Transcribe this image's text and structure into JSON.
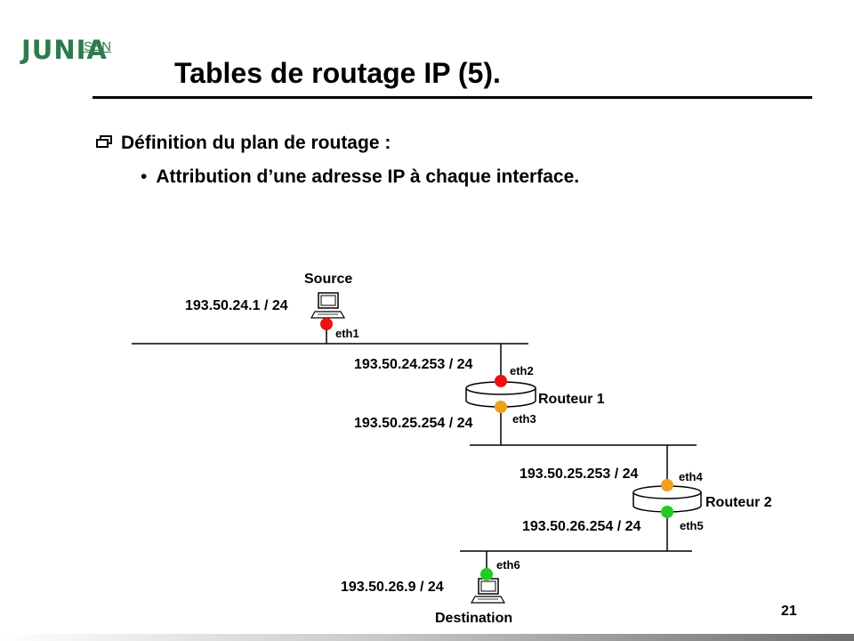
{
  "logo": {
    "main": "JUNIA",
    "sub": "ISEN"
  },
  "slide": {
    "title": "Tables de routage IP (5).",
    "bullet1": "Définition du plan de routage :",
    "bullet2": "Attribution d’une adresse IP à chaque interface.",
    "page_number": "21"
  },
  "diagram": {
    "hosts": {
      "source": "Source",
      "destination": "Destination"
    },
    "routers": {
      "r1": "Routeur 1",
      "r2": "Routeur 2"
    },
    "interfaces": {
      "eth1": {
        "name": "eth1",
        "ip": "193.50.24.1 / 24"
      },
      "eth2": {
        "name": "eth2",
        "ip": "193.50.24.253 / 24"
      },
      "eth3": {
        "name": "eth3",
        "ip": "193.50.25.254 / 24"
      },
      "eth4": {
        "name": "eth4",
        "ip": "193.50.25.253 / 24"
      },
      "eth5": {
        "name": "eth5",
        "ip": "193.50.26.254 / 24"
      },
      "eth6": {
        "name": "eth6",
        "ip": "193.50.26.9 / 24"
      }
    }
  },
  "colors": {
    "network_24": "#ee1111",
    "network_25": "#f0a020",
    "network_26": "#22cc22",
    "logo_green": "#2e7a4c"
  },
  "icons": [
    "windows-icon",
    "computer-icon",
    "router-icon"
  ]
}
